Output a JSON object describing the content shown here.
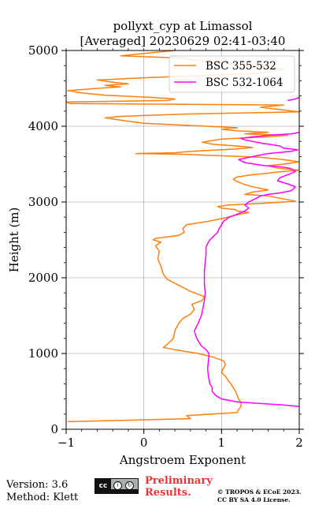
{
  "chart_data": {
    "type": "line",
    "title_line1": "pollyxt_cyp at Limassol",
    "title_line2": "[Averaged] 20230629 02:41-03:40",
    "xlabel": "Angstroem Exponent",
    "ylabel": "Height (m)",
    "xlim": [
      -1,
      2
    ],
    "ylim": [
      0,
      5000
    ],
    "xticks": [
      "−1",
      "0",
      "1",
      "2"
    ],
    "yticks": [
      "0",
      "1000",
      "2000",
      "3000",
      "4000",
      "5000"
    ],
    "grid": true,
    "legend_position": "top-right",
    "series": [
      {
        "name": "BSC 355-532",
        "color": "#ff7f0e",
        "points": [
          [
            -0.98,
            100
          ],
          [
            0.6,
            140
          ],
          [
            0.55,
            180
          ],
          [
            1.2,
            220
          ],
          [
            1.22,
            260
          ],
          [
            1.25,
            300
          ],
          [
            1.25,
            350
          ],
          [
            1.22,
            400
          ],
          [
            1.2,
            450
          ],
          [
            1.18,
            500
          ],
          [
            1.15,
            550
          ],
          [
            1.12,
            600
          ],
          [
            1.08,
            650
          ],
          [
            1.05,
            700
          ],
          [
            1.0,
            750
          ],
          [
            1.02,
            800
          ],
          [
            1.05,
            850
          ],
          [
            1.03,
            900
          ],
          [
            0.9,
            950
          ],
          [
            0.7,
            1000
          ],
          [
            0.4,
            1050
          ],
          [
            0.25,
            1080
          ],
          [
            0.3,
            1120
          ],
          [
            0.38,
            1200
          ],
          [
            0.4,
            1300
          ],
          [
            0.45,
            1400
          ],
          [
            0.5,
            1460
          ],
          [
            0.6,
            1520
          ],
          [
            0.65,
            1580
          ],
          [
            0.62,
            1650
          ],
          [
            0.75,
            1700
          ],
          [
            0.78,
            1750
          ],
          [
            0.6,
            1820
          ],
          [
            0.45,
            1900
          ],
          [
            0.3,
            1980
          ],
          [
            0.25,
            2050
          ],
          [
            0.22,
            2150
          ],
          [
            0.18,
            2250
          ],
          [
            0.2,
            2350
          ],
          [
            0.15,
            2420
          ],
          [
            0.22,
            2470
          ],
          [
            0.12,
            2500
          ],
          [
            0.15,
            2520
          ],
          [
            0.3,
            2540
          ],
          [
            0.45,
            2560
          ],
          [
            0.52,
            2600
          ],
          [
            0.5,
            2650
          ],
          [
            0.55,
            2700
          ],
          [
            0.8,
            2740
          ],
          [
            1.0,
            2780
          ],
          [
            1.2,
            2830
          ],
          [
            1.35,
            2860
          ],
          [
            1.2,
            2880
          ],
          [
            1.18,
            2900
          ],
          [
            1.0,
            2920
          ],
          [
            0.95,
            2940
          ],
          [
            1.1,
            2960
          ],
          [
            1.5,
            2980
          ],
          [
            1.95,
            3010
          ],
          [
            1.75,
            3050
          ],
          [
            1.6,
            3080
          ],
          [
            1.3,
            3100
          ],
          [
            1.4,
            3130
          ],
          [
            1.6,
            3160
          ],
          [
            1.4,
            3200
          ],
          [
            1.3,
            3230
          ],
          [
            1.2,
            3270
          ],
          [
            1.15,
            3300
          ],
          [
            1.2,
            3330
          ],
          [
            1.4,
            3360
          ],
          [
            1.6,
            3380
          ],
          [
            1.75,
            3400
          ],
          [
            2.0,
            3420
          ],
          [
            1.7,
            3450
          ],
          [
            1.6,
            3480
          ],
          [
            1.8,
            3500
          ],
          [
            2.0,
            3530
          ],
          [
            1.8,
            3560
          ],
          [
            1.5,
            3590
          ],
          [
            1.0,
            3610
          ],
          [
            0.5,
            3630
          ],
          [
            -0.1,
            3640
          ],
          [
            0.4,
            3650
          ],
          [
            0.5,
            3660
          ],
          [
            0.8,
            3680
          ],
          [
            1.2,
            3700
          ],
          [
            1.4,
            3720
          ],
          [
            1.2,
            3740
          ],
          [
            0.9,
            3760
          ],
          [
            0.75,
            3790
          ],
          [
            1.0,
            3830
          ],
          [
            1.6,
            3860
          ],
          [
            1.85,
            3880
          ],
          [
            1.3,
            3900
          ],
          [
            1.6,
            3920
          ],
          [
            1.2,
            3940
          ],
          [
            1.0,
            3960
          ],
          [
            1.2,
            3980
          ],
          [
            0.8,
            4000
          ],
          [
            0.4,
            4020
          ],
          [
            0.0,
            4040
          ],
          [
            -0.3,
            4080
          ],
          [
            -0.5,
            4110
          ],
          [
            -0.3,
            4130
          ],
          [
            0.5,
            4160
          ],
          [
            1.5,
            4180
          ],
          [
            2.0,
            4190
          ],
          [
            1.5,
            4250
          ],
          [
            1.8,
            4280
          ],
          [
            -0.95,
            4300
          ],
          [
            -1.0,
            4320
          ],
          [
            0.3,
            4340
          ],
          [
            0.4,
            4360
          ],
          [
            0.1,
            4380
          ],
          [
            -0.5,
            4410
          ],
          [
            -0.8,
            4440
          ],
          [
            -0.98,
            4470
          ],
          [
            -0.6,
            4500
          ],
          [
            -0.3,
            4520
          ],
          [
            -0.5,
            4540
          ],
          [
            -0.2,
            4560
          ],
          [
            -0.4,
            4580
          ],
          [
            -0.6,
            4610
          ],
          [
            0.0,
            4640
          ],
          [
            0.5,
            4660
          ],
          [
            1.5,
            4700
          ],
          [
            1.8,
            4750
          ],
          [
            1.5,
            4800
          ],
          [
            0.8,
            4850
          ],
          [
            0.5,
            4900
          ],
          [
            -0.3,
            4930
          ],
          [
            -0.1,
            4950
          ],
          [
            0.2,
            4980
          ],
          [
            0.4,
            5000
          ]
        ]
      },
      {
        "name": "BSC 532-1064",
        "color": "#ff00ff",
        "points": [
          [
            2.0,
            300
          ],
          [
            1.8,
            320
          ],
          [
            1.5,
            340
          ],
          [
            1.2,
            360
          ],
          [
            1.0,
            400
          ],
          [
            0.92,
            450
          ],
          [
            0.88,
            500
          ],
          [
            0.88,
            550
          ],
          [
            0.85,
            600
          ],
          [
            0.83,
            700
          ],
          [
            0.82,
            800
          ],
          [
            0.83,
            900
          ],
          [
            0.84,
            1000
          ],
          [
            0.8,
            1050
          ],
          [
            0.74,
            1100
          ],
          [
            0.68,
            1200
          ],
          [
            0.65,
            1300
          ],
          [
            0.7,
            1400
          ],
          [
            0.74,
            1500
          ],
          [
            0.76,
            1600
          ],
          [
            0.78,
            1700
          ],
          [
            0.79,
            1800
          ],
          [
            0.78,
            1900
          ],
          [
            0.78,
            2000
          ],
          [
            0.78,
            2100
          ],
          [
            0.79,
            2200
          ],
          [
            0.8,
            2300
          ],
          [
            0.8,
            2400
          ],
          [
            0.82,
            2450
          ],
          [
            0.85,
            2500
          ],
          [
            0.9,
            2550
          ],
          [
            0.95,
            2600
          ],
          [
            0.97,
            2650
          ],
          [
            1.0,
            2700
          ],
          [
            1.03,
            2750
          ],
          [
            1.1,
            2800
          ],
          [
            1.2,
            2840
          ],
          [
            1.3,
            2880
          ],
          [
            1.35,
            2920
          ],
          [
            1.3,
            2960
          ],
          [
            1.35,
            3000
          ],
          [
            1.45,
            3050
          ],
          [
            1.5,
            3080
          ],
          [
            1.6,
            3100
          ],
          [
            1.75,
            3120
          ],
          [
            1.9,
            3150
          ],
          [
            1.95,
            3200
          ],
          [
            1.85,
            3240
          ],
          [
            1.72,
            3280
          ],
          [
            1.75,
            3320
          ],
          [
            1.85,
            3360
          ],
          [
            1.95,
            3400
          ],
          [
            1.9,
            3440
          ],
          [
            1.8,
            3460
          ],
          [
            1.55,
            3480
          ],
          [
            1.3,
            3520
          ],
          [
            1.22,
            3560
          ],
          [
            1.4,
            3600
          ],
          [
            1.6,
            3640
          ],
          [
            1.9,
            3670
          ],
          [
            1.98,
            3690
          ],
          [
            1.8,
            3710
          ],
          [
            1.75,
            3740
          ],
          [
            1.5,
            3780
          ],
          [
            1.3,
            3820
          ],
          [
            1.25,
            3840
          ],
          [
            1.4,
            3860
          ],
          [
            1.6,
            3880
          ],
          [
            1.9,
            3900
          ],
          [
            2.0,
            3920
          ]
        ]
      },
      {
        "name": "",
        "color": "#ff00ff",
        "points": [
          [
            1.85,
            4340
          ],
          [
            1.95,
            4360
          ],
          [
            2.0,
            4380
          ]
        ]
      }
    ]
  },
  "footer": {
    "version": "Version: 3.6",
    "method": "Method: Klett",
    "preliminary_line1": "Preliminary",
    "preliminary_line2": "Results.",
    "copyright_line1": "© TROPOS & ECoE 2023.",
    "copyright_line2": "CC BY SA 4.0 License.",
    "license_badge": {
      "cc": "cc",
      "by": "BY",
      "sa": "SA"
    }
  }
}
